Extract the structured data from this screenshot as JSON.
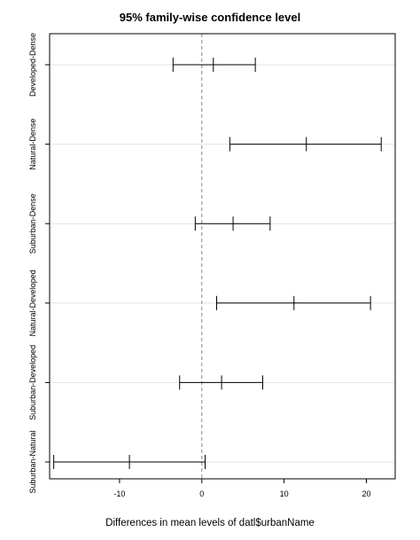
{
  "chart_data": {
    "type": "errorbar",
    "title": "95% family-wise confidence level",
    "xlabel": "Differences in mean levels of datl$urbanName",
    "ylabel": "",
    "xlim": [
      -18.5,
      23.5
    ],
    "xticks": [
      -10,
      0,
      10,
      20
    ],
    "reference_line": 0,
    "grid": true,
    "categories": [
      "Developed-Dense",
      "Natural-Dense",
      "Suburban-Dense",
      "Natural-Developed",
      "Suburban-Developed",
      "Suburban-Natural"
    ],
    "estimates": [
      1.4,
      12.7,
      3.8,
      11.2,
      2.4,
      -8.8
    ],
    "lower": [
      -3.5,
      3.4,
      -0.8,
      1.8,
      -2.7,
      -18.0
    ],
    "upper": [
      6.5,
      21.8,
      8.3,
      20.5,
      7.4,
      0.4
    ],
    "colors": {
      "bar": "#000000",
      "frame": "#000000",
      "grid": "#e3e3e3",
      "reference": "#888888"
    }
  }
}
